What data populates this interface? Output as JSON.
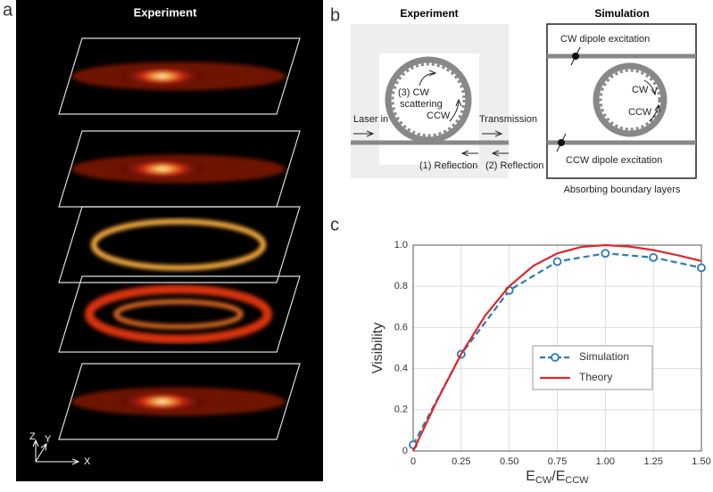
{
  "panels": {
    "a": {
      "label": "a",
      "title": "Experiment",
      "axes": [
        "Z",
        "Y",
        "X"
      ]
    },
    "b": {
      "label": "b",
      "experiment_title": "Experiment",
      "simulation_title": "Simulation",
      "laser_in": "Laser in",
      "transmission": "Transmission",
      "cw_scatter": "(3) CW",
      "scattering": "scattering",
      "ccw": "CCW",
      "reflection1": "(1) Reflection",
      "reflection2": "(2) Reflection",
      "cw_dipole": "CW dipole excitation",
      "sim_cw": "CW",
      "sim_ccw": "CCW",
      "ccw_dipole": "CCW dipole excitation",
      "boundary": "Absorbing boundary layers"
    },
    "c": {
      "label": "c"
    }
  },
  "chart_data": {
    "type": "line",
    "xlabel": [
      "E",
      "CW",
      "/E",
      "CCW"
    ],
    "ylabel": "Visibility",
    "xlim": [
      0,
      1.5
    ],
    "ylim": [
      0,
      1
    ],
    "xticks": [
      0,
      0.25,
      {
        "value": 0.5,
        "label": "0.50"
      },
      0.75,
      {
        "value": 1,
        "label": "1.00"
      },
      1.25,
      {
        "value": 1.5,
        "label": "1.50"
      }
    ],
    "yticks": [
      0,
      0.2,
      0.4,
      0.6,
      0.8,
      {
        "value": 1,
        "label": "1.0"
      }
    ],
    "grid": true,
    "legend": "center-right",
    "series": [
      {
        "name": "Simulation",
        "color": "#2a7ab8",
        "dashed": true,
        "markers": true,
        "x": [
          0,
          0.25,
          0.5,
          0.75,
          1,
          1.25,
          1.5
        ],
        "values": [
          0.03,
          0.47,
          0.78,
          0.92,
          0.96,
          0.94,
          0.89
        ]
      },
      {
        "name": "Theory",
        "color": "#e0262b",
        "dashed": false,
        "markers": false,
        "x": [
          0,
          0.125,
          0.25,
          0.375,
          0.5,
          0.625,
          0.75,
          0.875,
          1,
          1.125,
          1.25,
          1.375,
          1.5
        ],
        "values": [
          0,
          0.246,
          0.471,
          0.658,
          0.8,
          0.899,
          0.96,
          0.991,
          1,
          0.993,
          0.976,
          0.951,
          0.923
        ]
      }
    ]
  }
}
